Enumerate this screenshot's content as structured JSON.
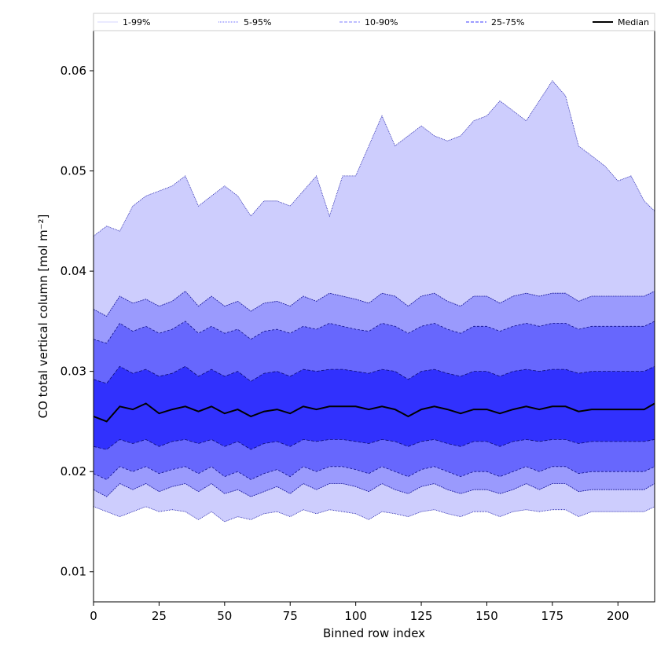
{
  "chart_data": {
    "type": "area",
    "xlabel": "Binned row index",
    "ylabel": "CO total vertical column [mol m⁻²]",
    "xlim": [
      0,
      214
    ],
    "ylim": [
      0.007,
      0.064
    ],
    "xticks": [
      0,
      25,
      50,
      75,
      100,
      125,
      150,
      175,
      200
    ],
    "yticks": [
      0.01,
      0.02,
      0.03,
      0.04,
      0.05,
      0.06
    ],
    "ytick_labels": [
      "0.01",
      "0.02",
      "0.03",
      "0.04",
      "0.05",
      "0.06"
    ],
    "grid": false,
    "legend_position": "top",
    "legend": [
      {
        "label": "1-99%",
        "color": "#d6d6ff",
        "style": "solid"
      },
      {
        "label": "5-95%",
        "color": "#6a6aff",
        "style": "dotted"
      },
      {
        "label": "10-90%",
        "color": "#7c7cff",
        "style": "dashed"
      },
      {
        "label": "25-75%",
        "color": "#3b3bff",
        "style": "dashed"
      },
      {
        "label": "Median",
        "color": "#000000",
        "style": "solid"
      }
    ],
    "x": [
      0,
      5,
      10,
      15,
      20,
      25,
      30,
      35,
      40,
      45,
      50,
      55,
      60,
      65,
      70,
      75,
      80,
      85,
      90,
      95,
      100,
      105,
      110,
      115,
      120,
      125,
      130,
      135,
      140,
      145,
      150,
      155,
      160,
      165,
      170,
      175,
      180,
      185,
      190,
      195,
      200,
      205,
      210,
      214
    ],
    "series": [
      {
        "name": "Median",
        "values": [
          0.0255,
          0.025,
          0.0265,
          0.0262,
          0.0268,
          0.0258,
          0.0262,
          0.0265,
          0.026,
          0.0265,
          0.0258,
          0.0262,
          0.0255,
          0.026,
          0.0262,
          0.0258,
          0.0265,
          0.0262,
          0.0265,
          0.0265,
          0.0265,
          0.0262,
          0.0265,
          0.0262,
          0.0255,
          0.0262,
          0.0265,
          0.0262,
          0.0258,
          0.0262,
          0.0262,
          0.0258,
          0.0262,
          0.0265,
          0.0262,
          0.0265,
          0.0265,
          0.026,
          0.0262,
          0.0262,
          0.0262,
          0.0262,
          0.0262,
          0.0268
        ]
      },
      {
        "name": "25-75%",
        "lower": [
          0.0225,
          0.0222,
          0.0232,
          0.0228,
          0.0232,
          0.0225,
          0.023,
          0.0232,
          0.0228,
          0.0232,
          0.0225,
          0.023,
          0.0222,
          0.0228,
          0.023,
          0.0225,
          0.0232,
          0.023,
          0.0232,
          0.0232,
          0.023,
          0.0228,
          0.0232,
          0.023,
          0.0225,
          0.023,
          0.0232,
          0.0228,
          0.0225,
          0.023,
          0.023,
          0.0225,
          0.023,
          0.0232,
          0.023,
          0.0232,
          0.0232,
          0.0228,
          0.023,
          0.023,
          0.023,
          0.023,
          0.023,
          0.0232
        ],
        "upper": [
          0.0292,
          0.0288,
          0.0305,
          0.0298,
          0.0302,
          0.0295,
          0.0298,
          0.0305,
          0.0295,
          0.0302,
          0.0295,
          0.03,
          0.029,
          0.0298,
          0.03,
          0.0295,
          0.0302,
          0.03,
          0.0302,
          0.0302,
          0.03,
          0.0298,
          0.0302,
          0.03,
          0.0292,
          0.03,
          0.0302,
          0.0298,
          0.0295,
          0.03,
          0.03,
          0.0295,
          0.03,
          0.0302,
          0.03,
          0.0302,
          0.0302,
          0.0298,
          0.03,
          0.03,
          0.03,
          0.03,
          0.03,
          0.0305
        ]
      },
      {
        "name": "10-90%",
        "lower": [
          0.0198,
          0.0192,
          0.0205,
          0.02,
          0.0205,
          0.0198,
          0.0202,
          0.0205,
          0.0198,
          0.0205,
          0.0195,
          0.02,
          0.0192,
          0.0198,
          0.0202,
          0.0195,
          0.0205,
          0.02,
          0.0205,
          0.0205,
          0.0202,
          0.0198,
          0.0205,
          0.02,
          0.0195,
          0.0202,
          0.0205,
          0.02,
          0.0195,
          0.02,
          0.02,
          0.0195,
          0.02,
          0.0205,
          0.02,
          0.0205,
          0.0205,
          0.0198,
          0.02,
          0.02,
          0.02,
          0.02,
          0.02,
          0.0205
        ],
        "upper": [
          0.0332,
          0.0328,
          0.0348,
          0.034,
          0.0345,
          0.0338,
          0.0342,
          0.035,
          0.0338,
          0.0345,
          0.0338,
          0.0342,
          0.0332,
          0.034,
          0.0342,
          0.0338,
          0.0345,
          0.0342,
          0.0348,
          0.0345,
          0.0342,
          0.034,
          0.0348,
          0.0345,
          0.0338,
          0.0345,
          0.0348,
          0.0342,
          0.0338,
          0.0345,
          0.0345,
          0.034,
          0.0345,
          0.0348,
          0.0345,
          0.0348,
          0.0348,
          0.0342,
          0.0345,
          0.0345,
          0.0345,
          0.0345,
          0.0345,
          0.035
        ]
      },
      {
        "name": "5-95%",
        "lower": [
          0.0182,
          0.0175,
          0.0188,
          0.0182,
          0.0188,
          0.018,
          0.0185,
          0.0188,
          0.018,
          0.0188,
          0.0178,
          0.0182,
          0.0175,
          0.018,
          0.0185,
          0.0178,
          0.0188,
          0.0182,
          0.0188,
          0.0188,
          0.0185,
          0.018,
          0.0188,
          0.0182,
          0.0178,
          0.0185,
          0.0188,
          0.0182,
          0.0178,
          0.0182,
          0.0182,
          0.0178,
          0.0182,
          0.0188,
          0.0182,
          0.0188,
          0.0188,
          0.018,
          0.0182,
          0.0182,
          0.0182,
          0.0182,
          0.0182,
          0.0188
        ],
        "upper": [
          0.0362,
          0.0355,
          0.0375,
          0.0368,
          0.0372,
          0.0365,
          0.037,
          0.038,
          0.0365,
          0.0375,
          0.0365,
          0.037,
          0.036,
          0.0368,
          0.037,
          0.0365,
          0.0375,
          0.037,
          0.0378,
          0.0375,
          0.0372,
          0.0368,
          0.0378,
          0.0375,
          0.0365,
          0.0375,
          0.0378,
          0.037,
          0.0365,
          0.0375,
          0.0375,
          0.0368,
          0.0375,
          0.0378,
          0.0375,
          0.0378,
          0.0378,
          0.037,
          0.0375,
          0.0375,
          0.0375,
          0.0375,
          0.0375,
          0.038
        ]
      },
      {
        "name": "1-99%",
        "lower": [
          0.0165,
          0.016,
          0.0155,
          0.016,
          0.0165,
          0.016,
          0.0162,
          0.016,
          0.0152,
          0.016,
          0.015,
          0.0155,
          0.0152,
          0.0158,
          0.016,
          0.0155,
          0.0162,
          0.0158,
          0.0162,
          0.016,
          0.0158,
          0.0152,
          0.016,
          0.0158,
          0.0155,
          0.016,
          0.0162,
          0.0158,
          0.0155,
          0.016,
          0.016,
          0.0155,
          0.016,
          0.0162,
          0.016,
          0.0162,
          0.0162,
          0.0155,
          0.016,
          0.016,
          0.016,
          0.016,
          0.016,
          0.0165
        ],
        "upper": [
          0.0435,
          0.0445,
          0.044,
          0.0465,
          0.0475,
          0.048,
          0.0485,
          0.0495,
          0.0465,
          0.0475,
          0.0485,
          0.0475,
          0.0455,
          0.047,
          0.047,
          0.0465,
          0.048,
          0.0495,
          0.0455,
          0.0495,
          0.0495,
          0.0525,
          0.0555,
          0.0525,
          0.0535,
          0.0545,
          0.0535,
          0.053,
          0.0535,
          0.055,
          0.0555,
          0.057,
          0.056,
          0.055,
          0.057,
          0.059,
          0.0575,
          0.0525,
          0.0515,
          0.0505,
          0.049,
          0.0495,
          0.047,
          0.046
        ]
      }
    ]
  }
}
